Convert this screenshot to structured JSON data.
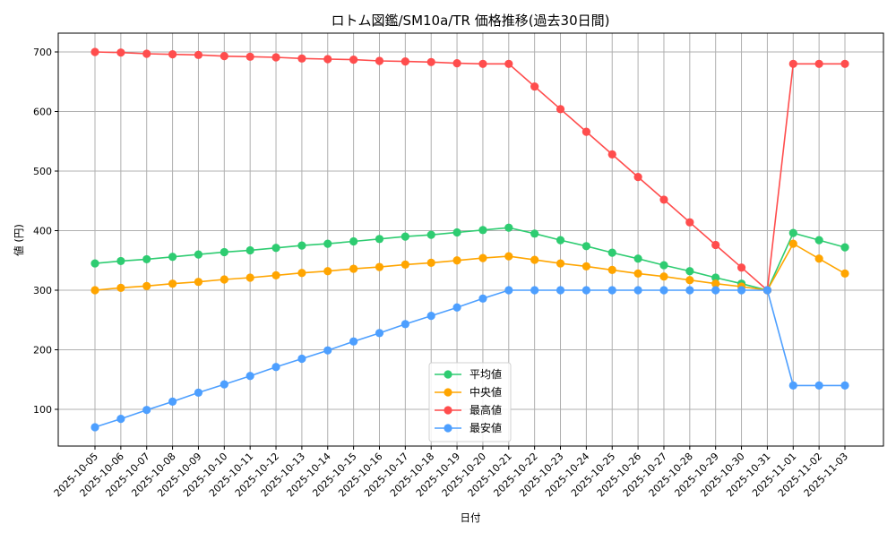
{
  "chart_data": {
    "type": "line",
    "title": "ロトム図鑑/SM10a/TR 価格推移(過去30日間)",
    "xlabel": "日付",
    "ylabel": "値 (円)",
    "ylim": [
      38,
      731
    ],
    "yticks": [
      100,
      200,
      300,
      400,
      500,
      600,
      700
    ],
    "grid": true,
    "legend_position": "lower center",
    "categories": [
      "2025-10-05",
      "2025-10-06",
      "2025-10-07",
      "2025-10-08",
      "2025-10-09",
      "2025-10-10",
      "2025-10-11",
      "2025-10-12",
      "2025-10-13",
      "2025-10-14",
      "2025-10-15",
      "2025-10-16",
      "2025-10-17",
      "2025-10-18",
      "2025-10-19",
      "2025-10-20",
      "2025-10-21",
      "2025-10-22",
      "2025-10-23",
      "2025-10-24",
      "2025-10-25",
      "2025-10-26",
      "2025-10-27",
      "2025-10-28",
      "2025-10-29",
      "2025-10-30",
      "2025-10-31",
      "2025-11-01",
      "2025-11-02",
      "2025-11-03"
    ],
    "series": [
      {
        "name": "平均値",
        "color": "#2ecc71",
        "values": [
          345,
          349,
          352,
          356,
          360,
          364,
          367,
          371,
          375,
          378,
          382,
          386,
          390,
          393,
          397,
          401,
          405,
          395,
          384,
          374,
          363,
          353,
          342,
          332,
          321,
          311,
          300,
          396,
          384,
          372
        ]
      },
      {
        "name": "中央値",
        "color": "#ffa500",
        "values": [
          300,
          304,
          307,
          311,
          314,
          318,
          321,
          325,
          329,
          332,
          336,
          339,
          343,
          346,
          350,
          354,
          357,
          351,
          345,
          340,
          334,
          328,
          323,
          317,
          311,
          306,
          300,
          378,
          353,
          328
        ]
      },
      {
        "name": "最高値",
        "color": "#ff4d4d",
        "values": [
          700,
          699,
          697,
          696,
          695,
          693,
          692,
          691,
          689,
          688,
          687,
          685,
          684,
          683,
          681,
          680,
          680,
          642,
          604,
          566,
          528,
          490,
          452,
          414,
          376,
          338,
          300,
          680,
          680,
          680
        ]
      },
      {
        "name": "最安値",
        "color": "#4d9fff",
        "values": [
          70,
          84,
          99,
          113,
          128,
          142,
          156,
          171,
          185,
          199,
          214,
          228,
          243,
          257,
          271,
          286,
          300,
          300,
          300,
          300,
          300,
          300,
          300,
          300,
          300,
          300,
          300,
          140,
          140,
          140
        ]
      }
    ]
  }
}
